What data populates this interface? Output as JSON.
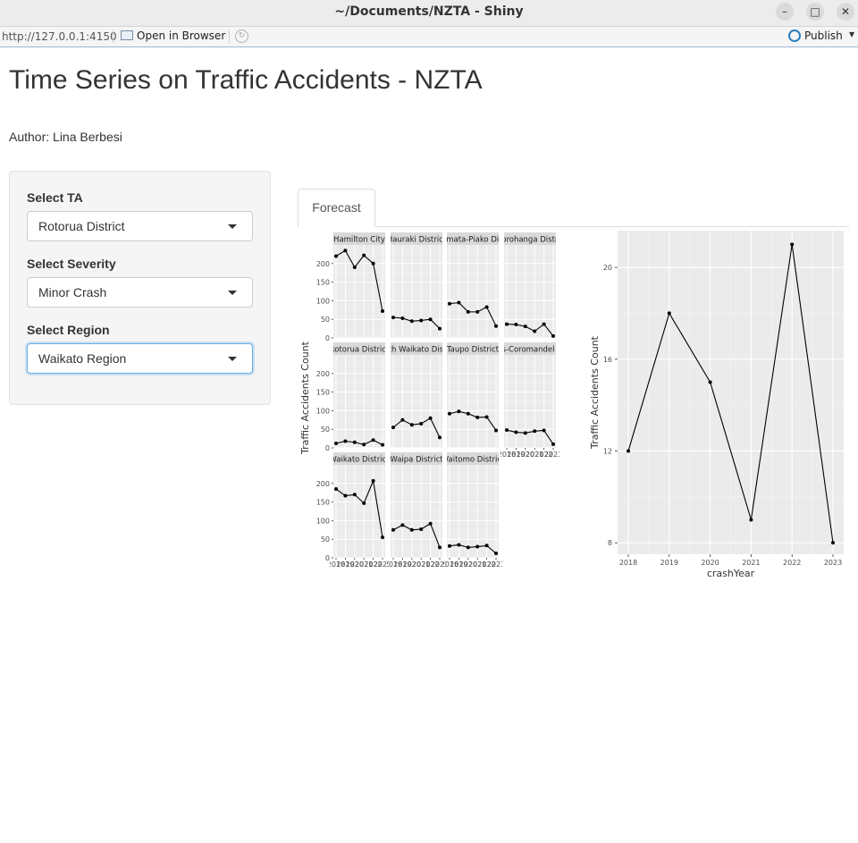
{
  "window": {
    "title": "~/Documents/NZTA - Shiny"
  },
  "toolbar": {
    "url": "http://127.0.0.1:4150",
    "open_label": "Open in Browser",
    "publish_label": "Publish"
  },
  "app": {
    "title": "Time Series on Traffic Accidents - NZTA",
    "author": "Author: Lina Berbesi"
  },
  "sidebar": {
    "ta_label": "Select TA",
    "ta_value": "Rotorua District",
    "severity_label": "Select Severity",
    "severity_value": "Minor Crash",
    "region_label": "Select Region",
    "region_value": "Waikato Region"
  },
  "tabs": [
    {
      "label": "Forecast"
    }
  ],
  "chart_data": [
    {
      "type": "line",
      "ylabel": "Traffic Accidents Count",
      "ylim": [
        0,
        250
      ],
      "yticks": [
        0,
        50,
        100,
        150,
        200
      ],
      "x": [
        2018,
        2019,
        2020,
        2021,
        2022,
        2023
      ],
      "xtick_labels": [
        "2018",
        "2019",
        "2020",
        "2021",
        "2022",
        "2023"
      ],
      "grid": true,
      "facets": [
        {
          "title": "Hamilton City",
          "values": [
            220,
            235,
            190,
            222,
            200,
            72
          ]
        },
        {
          "title": "Hauraki District",
          "values": [
            55,
            53,
            45,
            47,
            50,
            25
          ]
        },
        {
          "title": "Matamata-Piako District",
          "values": [
            92,
            95,
            70,
            70,
            83,
            32
          ]
        },
        {
          "title": "Otorohanga District",
          "values": [
            37,
            36,
            31,
            18,
            37,
            5
          ]
        },
        {
          "title": "Rotorua District",
          "values": [
            12,
            18,
            15,
            9,
            21,
            8
          ]
        },
        {
          "title": "South Waikato District",
          "values": [
            55,
            75,
            62,
            65,
            80,
            28
          ]
        },
        {
          "title": "Taupo District",
          "values": [
            92,
            98,
            92,
            82,
            83,
            47
          ]
        },
        {
          "title": "Thames-Coromandel District",
          "values": [
            48,
            42,
            40,
            45,
            47,
            10
          ]
        },
        {
          "title": "Waikato District",
          "values": [
            185,
            167,
            170,
            147,
            207,
            55
          ]
        },
        {
          "title": "Waipa District",
          "values": [
            75,
            88,
            75,
            77,
            92,
            28
          ]
        },
        {
          "title": "Waitomo District",
          "values": [
            32,
            35,
            28,
            30,
            33,
            12
          ]
        }
      ]
    },
    {
      "type": "line",
      "xlabel": "crashYear",
      "ylabel": "Traffic Accidents Count",
      "x": [
        2018,
        2019,
        2020,
        2021,
        2022,
        2023
      ],
      "values": [
        12,
        18,
        15,
        9,
        21,
        8
      ],
      "ylim": [
        7.5,
        21.6
      ],
      "yticks": [
        8,
        12,
        16,
        20
      ],
      "grid": true
    }
  ]
}
